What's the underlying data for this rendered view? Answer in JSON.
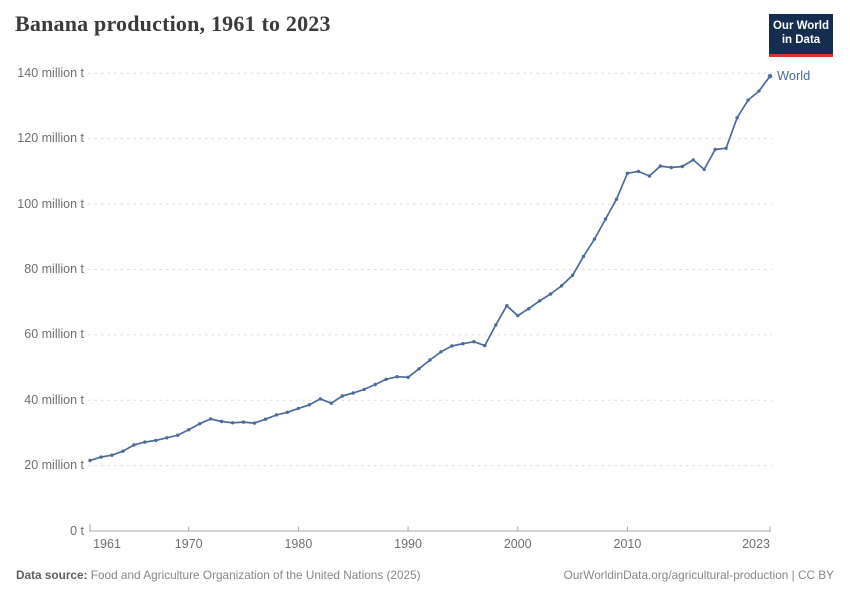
{
  "header": {
    "title": "Banana production, 1961 to 2023",
    "logo": {
      "line1": "Our World",
      "line2": "in Data"
    }
  },
  "chart_data": {
    "type": "line",
    "title": "Banana production, 1961 to 2023",
    "xlabel": "",
    "ylabel": "",
    "unit": "million t",
    "xlim": [
      1961,
      2023
    ],
    "ylim": [
      0,
      140
    ],
    "grid": "horizontal-dashed",
    "legend_position": "end-of-line-label",
    "years": [
      1961,
      1962,
      1963,
      1964,
      1965,
      1966,
      1967,
      1968,
      1969,
      1970,
      1971,
      1972,
      1973,
      1974,
      1975,
      1976,
      1977,
      1978,
      1979,
      1980,
      1981,
      1982,
      1983,
      1984,
      1985,
      1986,
      1987,
      1988,
      1989,
      1990,
      1991,
      1992,
      1993,
      1994,
      1995,
      1996,
      1997,
      1998,
      1999,
      2000,
      2001,
      2002,
      2003,
      2004,
      2005,
      2006,
      2007,
      2008,
      2009,
      2010,
      2011,
      2012,
      2013,
      2014,
      2015,
      2016,
      2017,
      2018,
      2019,
      2020,
      2021,
      2022,
      2023
    ],
    "series": [
      {
        "name": "World",
        "color": "#4C6A9C",
        "values": [
          21.6,
          22.6,
          23.2,
          24.4,
          26.3,
          27.2,
          27.7,
          28.5,
          29.3,
          31.0,
          32.8,
          34.3,
          33.5,
          33.1,
          33.3,
          33.0,
          34.2,
          35.5,
          36.3,
          37.5,
          38.6,
          40.4,
          39.1,
          41.3,
          42.2,
          43.3,
          44.8,
          46.4,
          47.2,
          47.0,
          49.6,
          52.3,
          54.8,
          56.6,
          57.3,
          57.9,
          56.7,
          63.0,
          68.9,
          65.9,
          68.0,
          70.4,
          72.5,
          75.0,
          78.2,
          84.0,
          89.3,
          95.4,
          101.5,
          109.4,
          110.0,
          108.6,
          111.6,
          111.2,
          111.5,
          113.5,
          110.6,
          116.7,
          117.1,
          126.4,
          131.8,
          134.6,
          139.1
        ]
      }
    ],
    "y_ticks": [
      {
        "value": 0,
        "label": "0 t"
      },
      {
        "value": 20,
        "label": "20 million t"
      },
      {
        "value": 40,
        "label": "40 million t"
      },
      {
        "value": 60,
        "label": "60 million t"
      },
      {
        "value": 80,
        "label": "80 million t"
      },
      {
        "value": 100,
        "label": "100 million t"
      },
      {
        "value": 120,
        "label": "120 million t"
      },
      {
        "value": 140,
        "label": "140 million t"
      }
    ],
    "x_ticks": [
      {
        "value": 1961,
        "label": "1961"
      },
      {
        "value": 1970,
        "label": "1970"
      },
      {
        "value": 1980,
        "label": "1980"
      },
      {
        "value": 1990,
        "label": "1990"
      },
      {
        "value": 2000,
        "label": "2000"
      },
      {
        "value": 2010,
        "label": "2010"
      },
      {
        "value": 2023,
        "label": "2023"
      }
    ]
  },
  "footer": {
    "source_label": "Data source:",
    "source_text": "Food and Agriculture Organization of the United Nations (2025)",
    "link_text": "OurWorldinData.org/agricultural-production | CC BY"
  },
  "colors": {
    "series_world": "#4C6A9C",
    "logo_navy": "#152d4f",
    "logo_red": "#d43a2a",
    "grid": "#dcdcdc",
    "axis": "#a8a8a8",
    "title_text": "#3b3b3b",
    "tick_text": "#6f6f6f",
    "footer_text": "#878787"
  }
}
